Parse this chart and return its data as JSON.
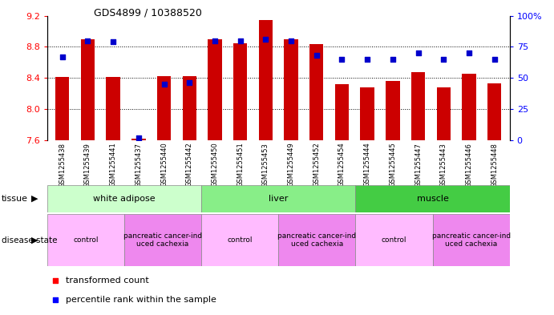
{
  "title": "GDS4899 / 10388520",
  "samples": [
    "GSM1255438",
    "GSM1255439",
    "GSM1255441",
    "GSM1255437",
    "GSM1255440",
    "GSM1255442",
    "GSM1255450",
    "GSM1255451",
    "GSM1255453",
    "GSM1255449",
    "GSM1255452",
    "GSM1255454",
    "GSM1255444",
    "GSM1255445",
    "GSM1255447",
    "GSM1255443",
    "GSM1255446",
    "GSM1255448"
  ],
  "transformed_count": [
    8.41,
    8.9,
    8.41,
    7.62,
    8.42,
    8.42,
    8.9,
    8.85,
    9.15,
    8.9,
    8.84,
    8.32,
    8.28,
    8.36,
    8.47,
    8.28,
    8.45,
    8.33
  ],
  "percentile_rank": [
    67,
    80,
    79,
    2,
    45,
    46,
    80,
    80,
    81,
    80,
    68,
    65,
    65,
    65,
    70,
    65,
    70,
    65
  ],
  "tissue_groups": [
    {
      "label": "white adipose",
      "start": 0,
      "end": 6,
      "color": "#ccffcc"
    },
    {
      "label": "liver",
      "start": 6,
      "end": 12,
      "color": "#88ee88"
    },
    {
      "label": "muscle",
      "start": 12,
      "end": 18,
      "color": "#44cc44"
    }
  ],
  "disease_groups": [
    {
      "label": "control",
      "start": 0,
      "end": 3,
      "is_control": true
    },
    {
      "label": "pancreatic cancer-ind\nuced cachexia",
      "start": 3,
      "end": 6,
      "is_control": false
    },
    {
      "label": "control",
      "start": 6,
      "end": 9,
      "is_control": true
    },
    {
      "label": "pancreatic cancer-ind\nuced cachexia",
      "start": 9,
      "end": 12,
      "is_control": false
    },
    {
      "label": "control",
      "start": 12,
      "end": 15,
      "is_control": true
    },
    {
      "label": "pancreatic cancer-ind\nuced cachexia",
      "start": 15,
      "end": 18,
      "is_control": false
    }
  ],
  "ylim_left": [
    7.6,
    9.2
  ],
  "ylim_right": [
    0,
    100
  ],
  "bar_color": "#cc0000",
  "dot_color": "#0000cc",
  "bar_width": 0.55,
  "yticks_left": [
    7.6,
    8.0,
    8.4,
    8.8,
    9.2
  ],
  "yticks_right": [
    0,
    25,
    50,
    75,
    100
  ],
  "grid_lines": [
    8.0,
    8.4,
    8.8
  ],
  "xtick_bg_color": "#cccccc",
  "tissue_colors": {
    "white adipose": "#ccffcc",
    "liver": "#88ee88",
    "muscle": "#44cc44"
  },
  "control_color": "#ffbbff",
  "cancer_color": "#ee88ee"
}
